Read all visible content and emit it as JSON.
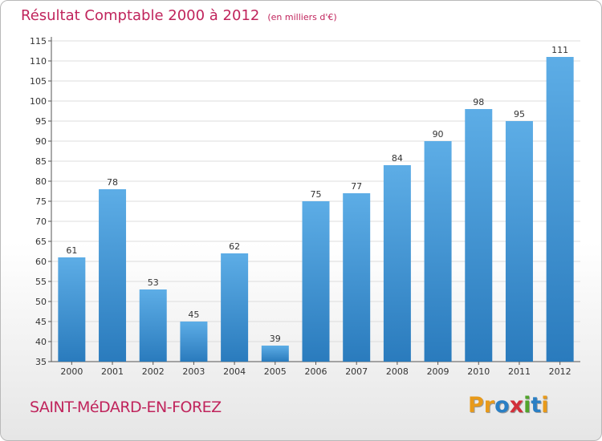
{
  "header": {
    "title": "Résultat Comptable 2000 à 2012",
    "unit": "(en milliers d'€)"
  },
  "footer": {
    "commune": "SAINT-MéDARD-EN-FOREZ",
    "logo_letters": [
      "P",
      "r",
      "o",
      "x",
      "i",
      "t",
      "i"
    ]
  },
  "colors": {
    "title": "#c0245c",
    "bar_light": "#5dade6",
    "bar_dark": "#2a7bbd",
    "grid": "#dcdcdc",
    "logo": [
      "#e89a1a",
      "#e89a1a",
      "#2a7fc4",
      "#d22f3a",
      "#52a52c",
      "#2a7fc4",
      "#e89a1a"
    ]
  },
  "chart_data": {
    "type": "bar",
    "categories": [
      "2000",
      "2001",
      "2002",
      "2003",
      "2004",
      "2005",
      "2006",
      "2007",
      "2008",
      "2009",
      "2010",
      "2011",
      "2012"
    ],
    "values": [
      61,
      78,
      53,
      45,
      62,
      39,
      75,
      77,
      84,
      90,
      98,
      95,
      111
    ],
    "data_labels": [
      "61",
      "78",
      "53",
      "45",
      "62",
      "39",
      "75",
      "77",
      "84",
      "90",
      "98",
      "95",
      "111"
    ],
    "ylim": [
      35,
      115
    ],
    "yticks": [
      35,
      40,
      45,
      50,
      55,
      60,
      65,
      70,
      75,
      80,
      85,
      90,
      95,
      100,
      105,
      110,
      115
    ],
    "grid": true,
    "legend": "none"
  }
}
